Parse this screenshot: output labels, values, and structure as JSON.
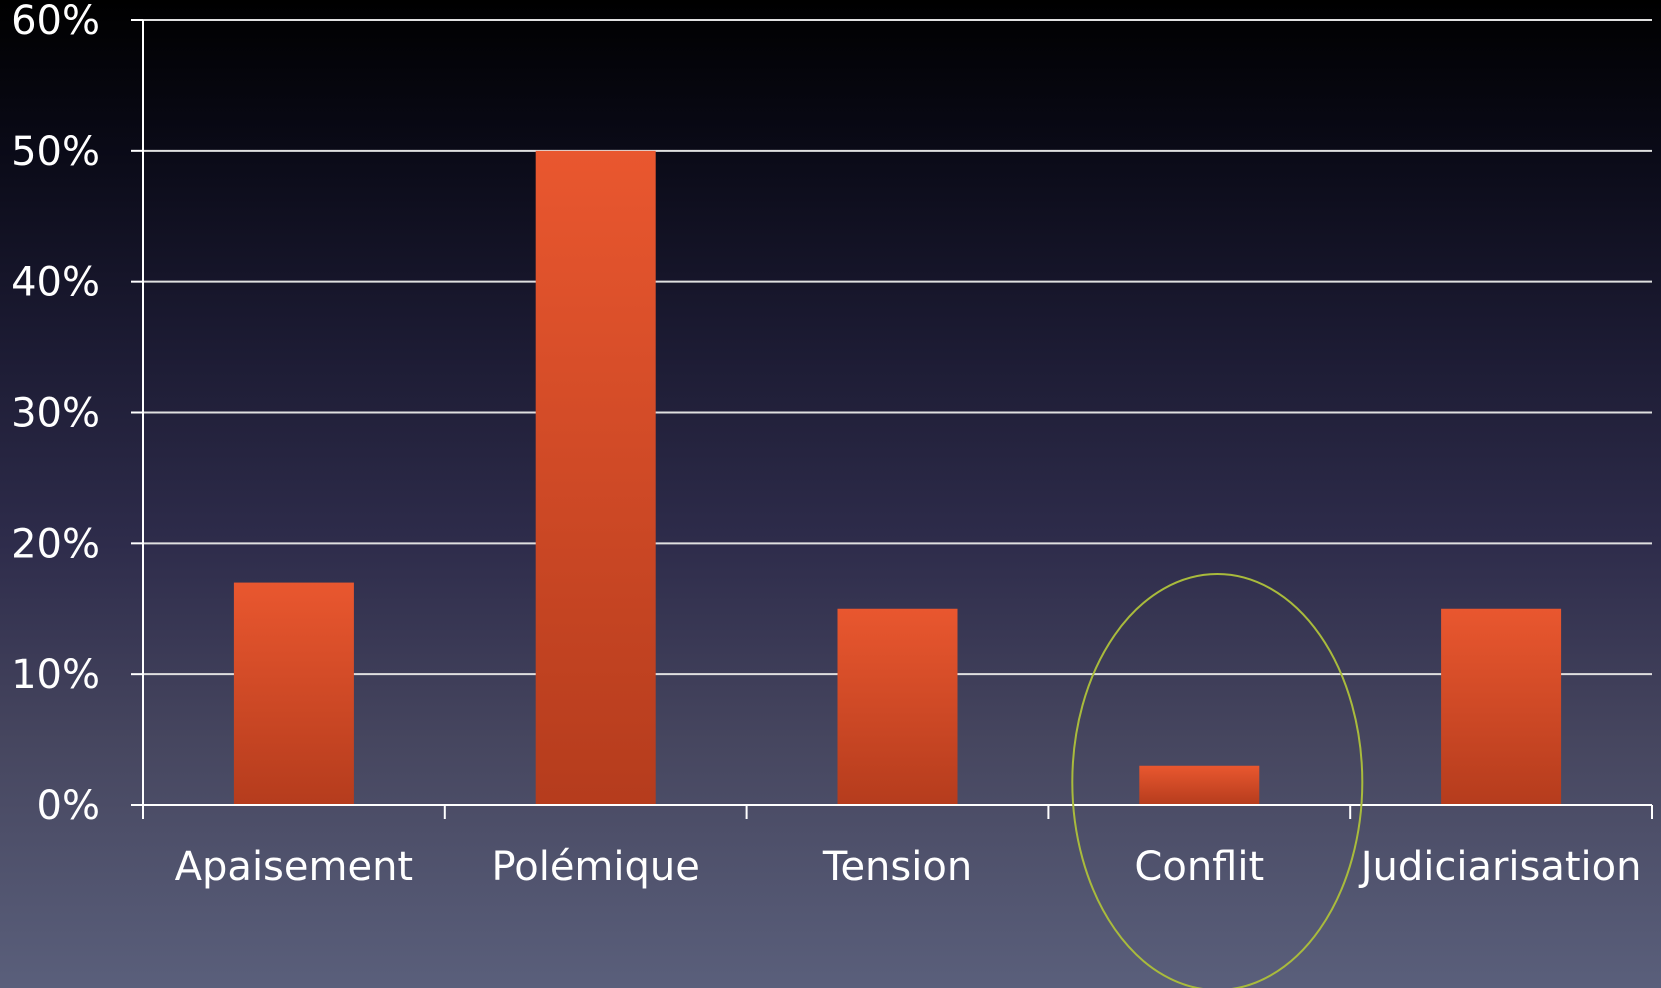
{
  "chart_data": {
    "type": "bar",
    "categories": [
      "Apaisement",
      "Polémique",
      "Tension",
      "Conflit",
      "Judiciarisation"
    ],
    "values": [
      17,
      50,
      15,
      3,
      15
    ],
    "value_unit": "%",
    "ylim": [
      0,
      60
    ],
    "yticks": [
      0,
      10,
      20,
      30,
      40,
      50,
      60
    ],
    "ytick_labels": [
      "0%",
      "10%",
      "20%",
      "30%",
      "40%",
      "50%",
      "60%"
    ],
    "grid": true,
    "legend": "none",
    "highlighted_category": "Conflit",
    "highlight_shape": "ellipse",
    "colors": {
      "bar_top": "#e9572f",
      "bar_bottom": "#b53c1d",
      "grid": "#e0e0e0",
      "axis": "#ffffff",
      "text": "#ffffff",
      "highlight": "#a9bb3c"
    }
  }
}
